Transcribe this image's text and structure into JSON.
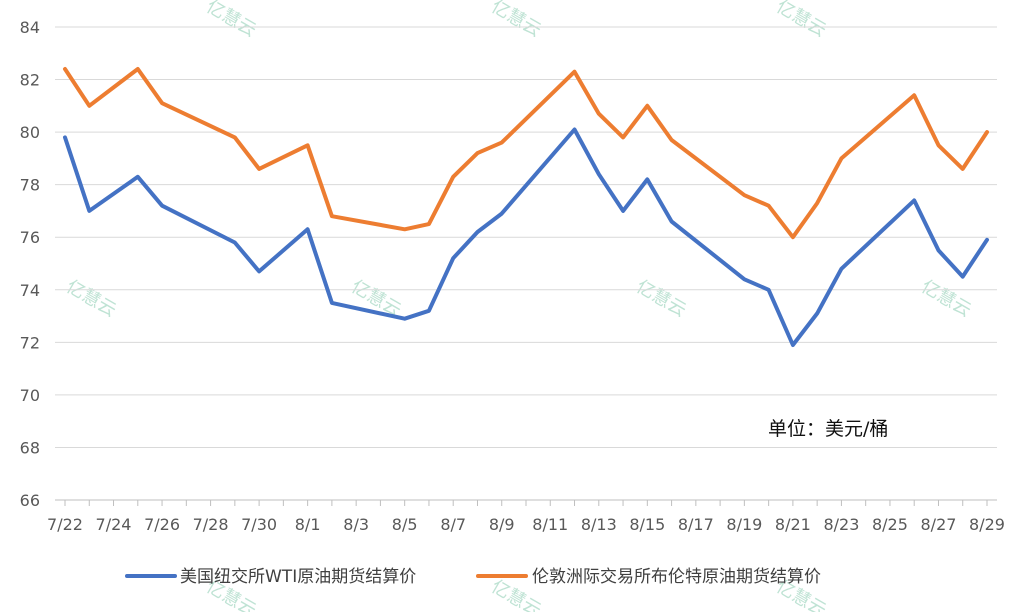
{
  "chart_data": {
    "type": "line",
    "ylim": [
      66,
      84
    ],
    "yticks": [
      66,
      68,
      70,
      72,
      74,
      76,
      78,
      80,
      82,
      84
    ],
    "x": [
      "7/22",
      "7/23",
      "7/24",
      "7/25",
      "7/26",
      "7/27",
      "7/28",
      "7/29",
      "7/30",
      "7/31",
      "8/1",
      "8/2",
      "8/3",
      "8/4",
      "8/5",
      "8/6",
      "8/7",
      "8/8",
      "8/9",
      "8/10",
      "8/11",
      "8/12",
      "8/13",
      "8/14",
      "8/15",
      "8/16",
      "8/17",
      "8/18",
      "8/19",
      "8/20",
      "8/21",
      "8/22",
      "8/23",
      "8/24",
      "8/25",
      "8/26",
      "8/27",
      "8/28",
      "8/29"
    ],
    "xtick_labels": [
      "7/22",
      "7/24",
      "7/26",
      "7/28",
      "7/30",
      "8/1",
      "8/3",
      "8/5",
      "8/7",
      "8/9",
      "8/11",
      "8/13",
      "8/15",
      "8/17",
      "8/19",
      "8/21",
      "8/23",
      "8/25",
      "8/27",
      "8/29"
    ],
    "series": [
      {
        "name": "美国纽交所WTI原油期货结算价",
        "color": "#4472C4",
        "values": [
          79.8,
          77.0,
          null,
          78.3,
          77.2,
          null,
          null,
          75.8,
          74.7,
          null,
          76.3,
          73.5,
          null,
          null,
          72.9,
          73.2,
          75.2,
          76.2,
          76.9,
          null,
          null,
          80.1,
          78.4,
          77.0,
          78.2,
          76.6,
          null,
          null,
          74.4,
          74.0,
          71.9,
          73.1,
          74.8,
          null,
          null,
          77.4,
          75.5,
          74.5,
          75.9
        ]
      },
      {
        "name": "伦敦洲际交易所布伦特原油期货结算价",
        "color": "#ED7D31",
        "values": [
          82.4,
          81.0,
          null,
          82.4,
          81.1,
          null,
          null,
          79.8,
          78.6,
          null,
          79.5,
          76.8,
          null,
          null,
          76.3,
          76.5,
          78.3,
          79.2,
          79.6,
          null,
          null,
          82.3,
          80.7,
          79.8,
          81.0,
          79.7,
          null,
          null,
          77.6,
          77.2,
          76.0,
          77.3,
          79.0,
          null,
          null,
          81.4,
          79.5,
          78.6,
          80.0
        ]
      }
    ],
    "annotation": "单位：美元/桶",
    "legend": "bottom",
    "grid": "horizontal"
  },
  "watermark": "亿慧云"
}
